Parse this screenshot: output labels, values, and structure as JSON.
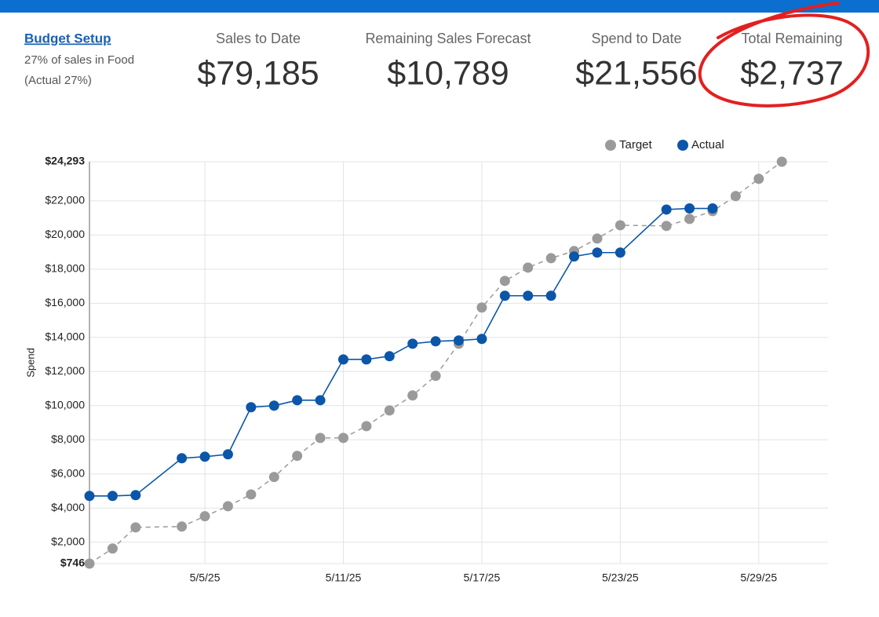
{
  "header": {
    "link": "Budget Setup",
    "note": "27% of sales in Food",
    "actual": "(Actual 27%)",
    "kpis": [
      {
        "label": "Sales to Date",
        "value": "$79,185"
      },
      {
        "label": "Remaining Sales Forecast",
        "value": "$10,789"
      },
      {
        "label": "Spend to Date",
        "value": "$21,556"
      },
      {
        "label": "Total Remaining",
        "value": "$2,737"
      }
    ]
  },
  "chart_data": {
    "type": "line",
    "y_label": "Spend",
    "grid": true,
    "xlim": [
      "4/30/25",
      "6/1/25"
    ],
    "xticks": [
      "5/5/25",
      "5/11/25",
      "5/17/25",
      "5/23/25",
      "5/29/25"
    ],
    "ylim": [
      746,
      24293
    ],
    "yticks": [
      {
        "value": 746,
        "label": "$746"
      },
      {
        "value": 2000,
        "label": "$2,000"
      },
      {
        "value": 4000,
        "label": "$4,000"
      },
      {
        "value": 6000,
        "label": "$6,000"
      },
      {
        "value": 8000,
        "label": "$8,000"
      },
      {
        "value": 10000,
        "label": "$10,000"
      },
      {
        "value": 12000,
        "label": "$12,000"
      },
      {
        "value": 14000,
        "label": "$14,000"
      },
      {
        "value": 16000,
        "label": "$16,000"
      },
      {
        "value": 18000,
        "label": "$18,000"
      },
      {
        "value": 20000,
        "label": "$20,000"
      },
      {
        "value": 22000,
        "label": "$22,000"
      },
      {
        "value": 24293,
        "label": "$24,293"
      }
    ],
    "series": [
      {
        "name": "Target",
        "color": "#9a9a9a",
        "dashed": true,
        "x": [
          "4/30/25",
          "5/1/25",
          "5/2/25",
          "5/4/25",
          "5/5/25",
          "5/6/25",
          "5/7/25",
          "5/8/25",
          "5/9/25",
          "5/10/25",
          "5/11/25",
          "5/12/25",
          "5/13/25",
          "5/14/25",
          "5/15/25",
          "5/16/25",
          "5/17/25",
          "5/18/25",
          "5/19/25",
          "5/20/25",
          "5/21/25",
          "5/22/25",
          "5/23/25",
          "5/25/25",
          "5/26/25",
          "5/27/25",
          "5/28/25",
          "5/29/25",
          "5/30/25"
        ],
        "values": [
          746,
          1630,
          2870,
          2920,
          3520,
          4110,
          4800,
          5820,
          7060,
          8110,
          8110,
          8800,
          9720,
          10600,
          11750,
          13630,
          15750,
          17310,
          18090,
          18640,
          19060,
          19790,
          20570,
          20530,
          20940,
          21400,
          22280,
          23290,
          24293
        ]
      },
      {
        "name": "Actual",
        "color": "#0b56a8",
        "dashed": false,
        "x": [
          "4/30/25",
          "5/1/25",
          "5/2/25",
          "5/4/25",
          "5/5/25",
          "5/6/25",
          "5/7/25",
          "5/8/25",
          "5/9/25",
          "5/10/25",
          "5/11/25",
          "5/12/25",
          "5/13/25",
          "5/14/25",
          "5/15/25",
          "5/16/25",
          "5/17/25",
          "5/18/25",
          "5/19/25",
          "5/20/25",
          "5/21/25",
          "5/22/25",
          "5/23/25",
          "5/25/25",
          "5/26/25",
          "5/27/25"
        ],
        "values": [
          4710,
          4710,
          4760,
          6920,
          7010,
          7150,
          9910,
          10000,
          10320,
          10320,
          12710,
          12710,
          12900,
          13630,
          13770,
          13820,
          13910,
          16440,
          16440,
          16440,
          18740,
          18970,
          18970,
          21490,
          21556,
          21556
        ]
      }
    ]
  }
}
